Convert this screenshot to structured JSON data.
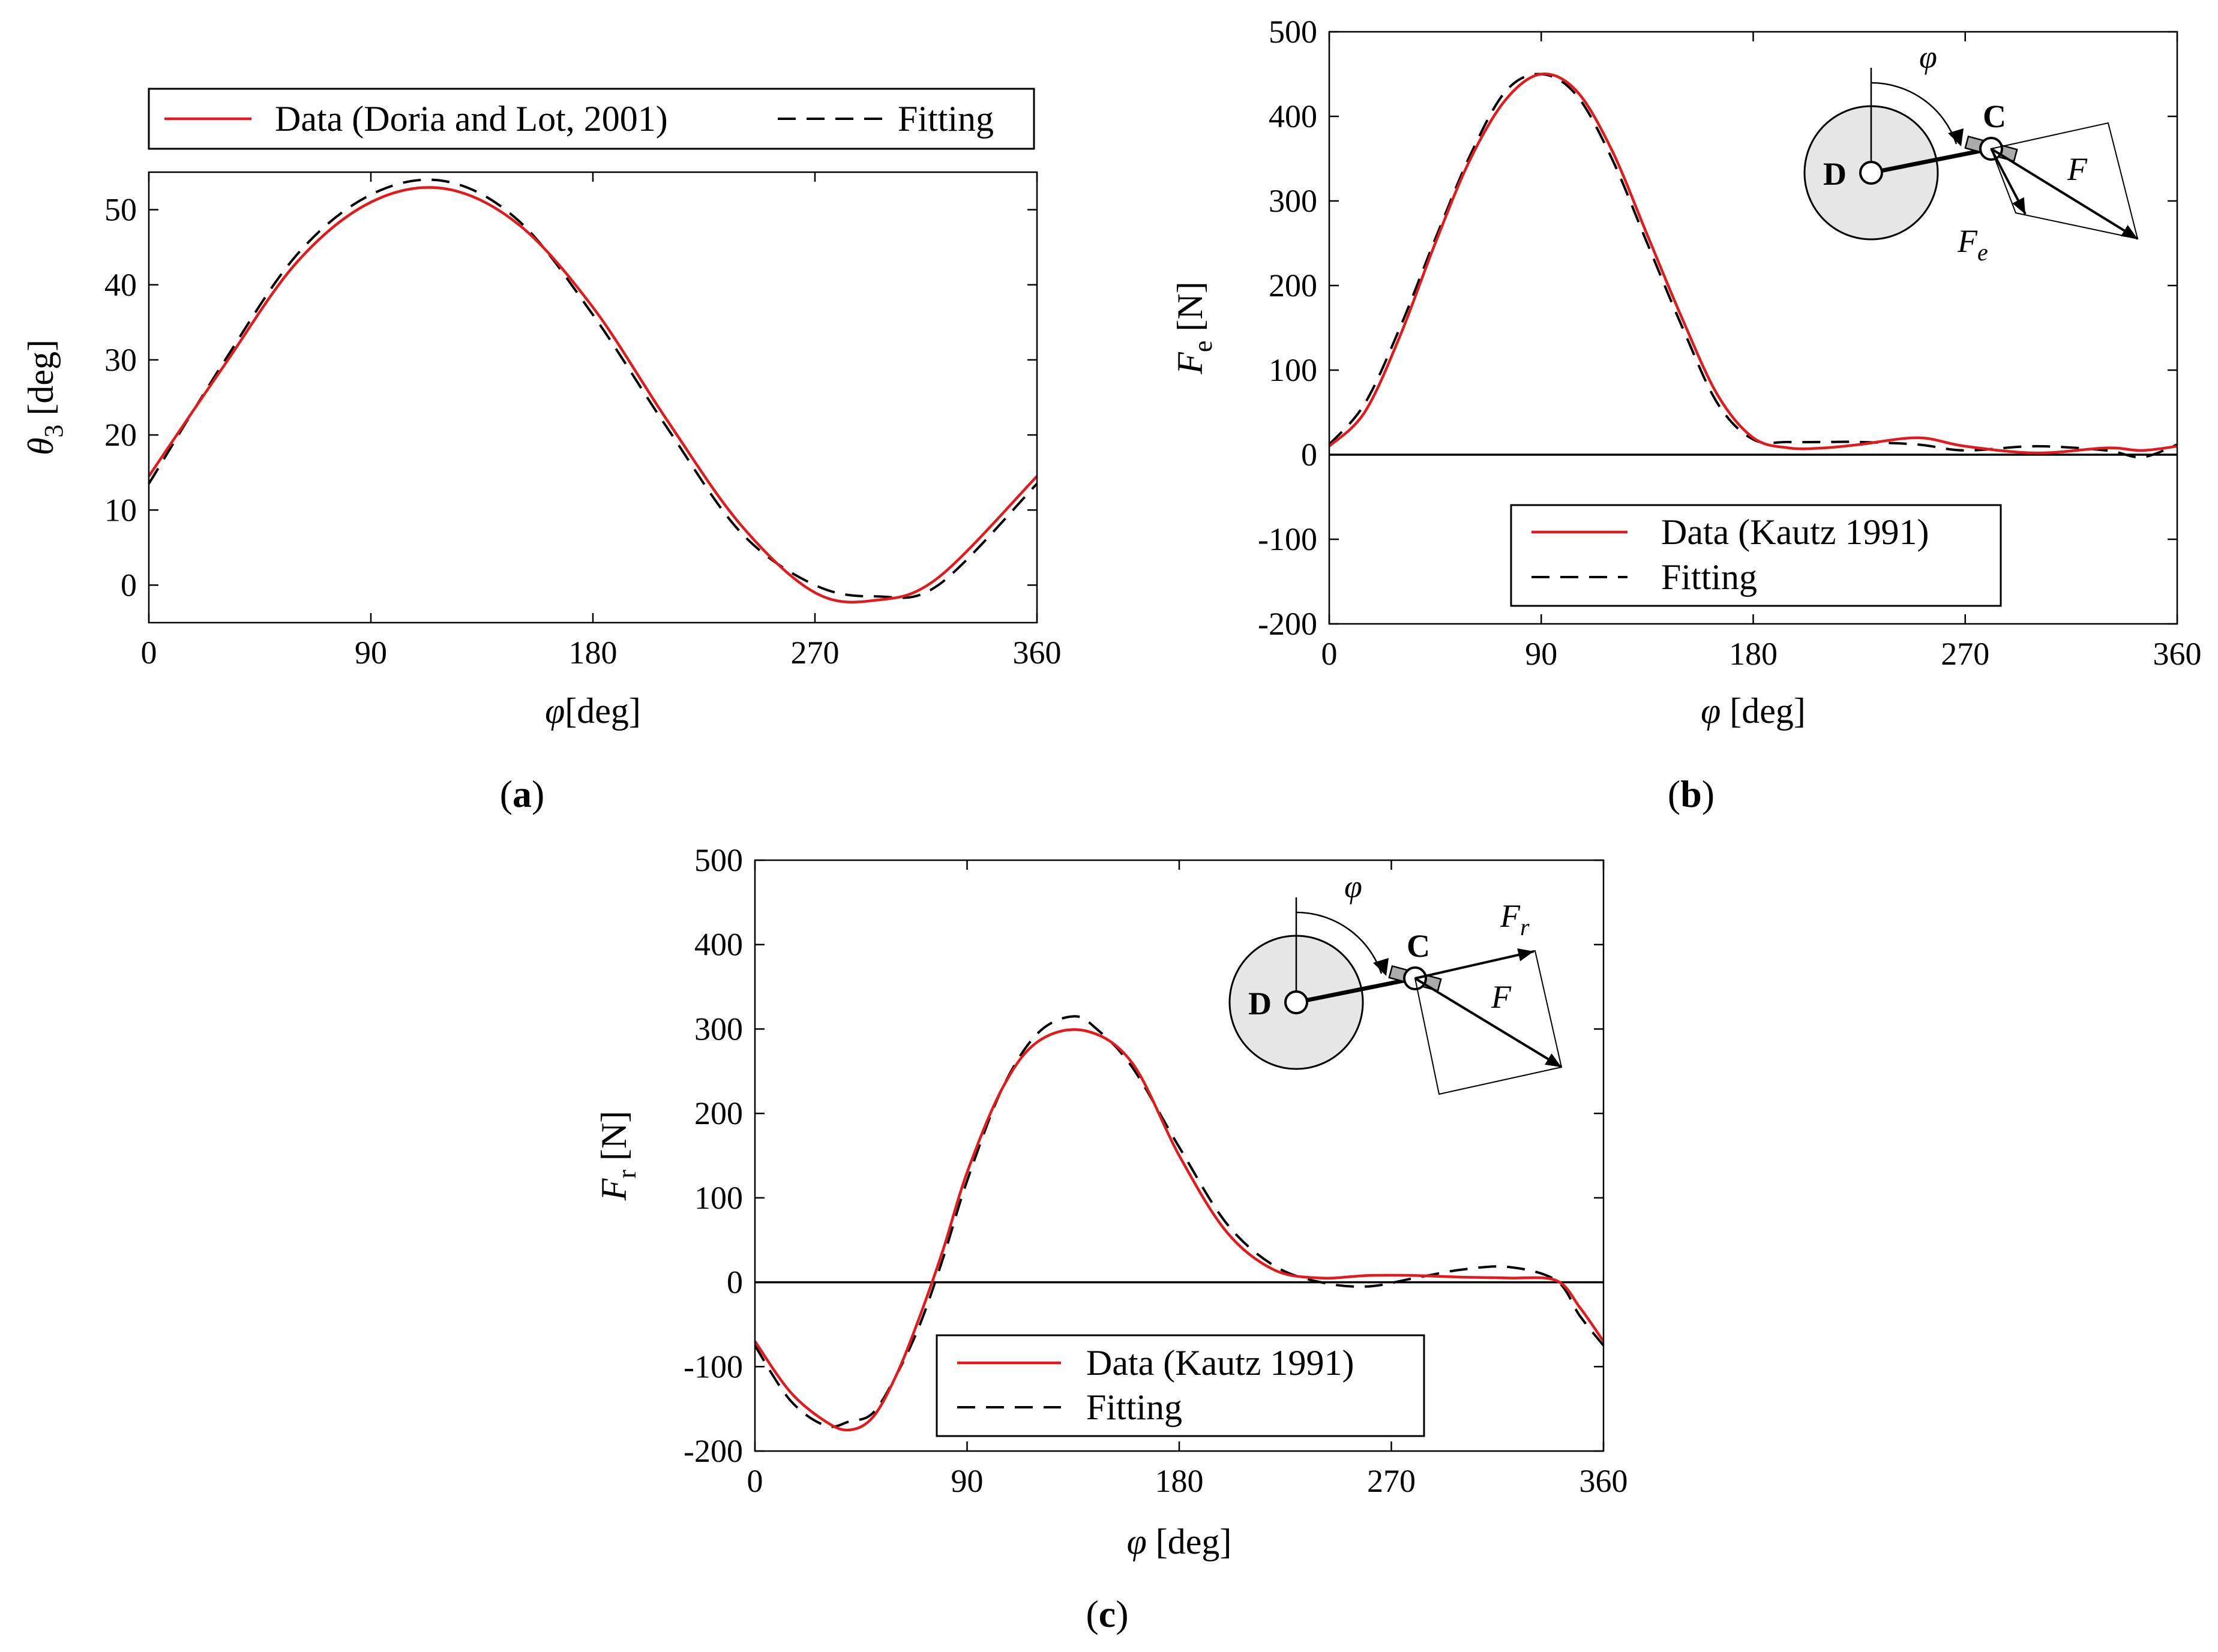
{
  "colors": {
    "data": "#e31a1c",
    "fit": "#000000",
    "disk": "#e6e6e6"
  },
  "chart_data": [
    {
      "id": "a",
      "type": "line",
      "caption_letter": "a",
      "xlabel_symbol": "φ",
      "xlabel_unit": "[deg]",
      "ylabel_symbol": "θ",
      "ylabel_sub": "3",
      "ylabel_unit": " [deg]",
      "xlim": [
        0,
        360
      ],
      "ylim": [
        -5,
        55
      ],
      "xticks": [
        "0",
        "90",
        "180",
        "270",
        "360"
      ],
      "yticks": [
        "0",
        "10",
        "20",
        "30",
        "40",
        "50"
      ],
      "ytick_values": [
        0,
        10,
        20,
        30,
        40,
        50
      ],
      "zero_line": false,
      "legend": {
        "placement": "top-outside",
        "labels": [
          "Data (Doria and Lot, 2001)",
          "Fitting"
        ]
      },
      "series": [
        {
          "name": "Data (Doria and Lot, 2001)",
          "x": [
            0,
            30,
            60,
            90,
            120,
            150,
            180,
            210,
            240,
            270,
            295,
            320,
            360
          ],
          "values": [
            14.5,
            29,
            43,
            51,
            52.8,
            48,
            37,
            22,
            8,
            -1,
            -2,
            1,
            14.5
          ]
        },
        {
          "name": "Fitting",
          "x": [
            0,
            30,
            60,
            90,
            120,
            150,
            180,
            210,
            240,
            270,
            295,
            320,
            360
          ],
          "values": [
            13.5,
            29.5,
            44,
            52,
            53.8,
            48.5,
            36,
            21,
            7,
            0,
            -1.5,
            0,
            13.5
          ]
        }
      ]
    },
    {
      "id": "b",
      "type": "line",
      "caption_letter": "b",
      "xlabel_symbol": "φ",
      "xlabel_unit": " [deg]",
      "ylabel_symbol": "F",
      "ylabel_sub": "e",
      "ylabel_unit": " [N]",
      "xlim": [
        0,
        360
      ],
      "ylim": [
        -200,
        500
      ],
      "xticks": [
        "0",
        "90",
        "180",
        "270",
        "360"
      ],
      "yticks": [
        "-200",
        "-100",
        "0",
        "100",
        "200",
        "300",
        "400",
        "500"
      ],
      "ytick_values": [
        -200,
        -100,
        0,
        100,
        200,
        300,
        400,
        500
      ],
      "zero_line": true,
      "legend": {
        "placement": "lower-center",
        "labels": [
          "Data (Kautz 1991)",
          "Fitting"
        ]
      },
      "diagram": {
        "angle_symbol": "φ",
        "point_d": "D",
        "point_c": "C",
        "force": "F",
        "component": "F",
        "component_sub": "e"
      },
      "series": [
        {
          "name": "Data (Kautz 1991)",
          "x": [
            0,
            15,
            30,
            45,
            60,
            75,
            90,
            105,
            120,
            135,
            150,
            165,
            180,
            195,
            210,
            225,
            250,
            270,
            300,
            330,
            345,
            360
          ],
          "values": [
            10,
            50,
            140,
            250,
            350,
            420,
            450,
            430,
            360,
            260,
            160,
            70,
            20,
            8,
            8,
            12,
            20,
            10,
            2,
            8,
            5,
            10
          ]
        },
        {
          "name": "Fitting",
          "x": [
            0,
            15,
            30,
            45,
            60,
            75,
            90,
            105,
            120,
            135,
            150,
            165,
            180,
            195,
            210,
            225,
            250,
            270,
            300,
            330,
            345,
            360
          ],
          "values": [
            12,
            60,
            150,
            255,
            355,
            430,
            450,
            425,
            350,
            250,
            150,
            60,
            18,
            15,
            15,
            15,
            12,
            5,
            10,
            5,
            -3,
            12
          ]
        }
      ]
    },
    {
      "id": "c",
      "type": "line",
      "caption_letter": "c",
      "xlabel_symbol": "φ",
      "xlabel_unit": " [deg]",
      "ylabel_symbol": "F",
      "ylabel_sub": "r",
      "ylabel_unit": " [N]",
      "xlim": [
        0,
        360
      ],
      "ylim": [
        -200,
        500
      ],
      "xticks": [
        "0",
        "90",
        "180",
        "270",
        "360"
      ],
      "yticks": [
        "-200",
        "-100",
        "0",
        "100",
        "200",
        "300",
        "400",
        "500"
      ],
      "ytick_values": [
        -200,
        -100,
        0,
        100,
        200,
        300,
        400,
        500
      ],
      "zero_line": true,
      "legend": {
        "placement": "lower-center",
        "labels": [
          "Data (Kautz 1991)",
          "Fitting"
        ]
      },
      "diagram": {
        "angle_symbol": "φ",
        "point_d": "D",
        "point_c": "C",
        "force": "F",
        "component": "F",
        "component_sub": "r"
      },
      "series": [
        {
          "name": "Data (Kautz 1991)",
          "x": [
            0,
            15,
            30,
            40,
            50,
            60,
            70,
            80,
            90,
            105,
            120,
            140,
            160,
            180,
            200,
            220,
            240,
            260,
            280,
            300,
            320,
            340,
            350,
            360
          ],
          "values": [
            -70,
            -130,
            -165,
            -175,
            -160,
            -110,
            -40,
            40,
            130,
            230,
            285,
            298,
            260,
            150,
            60,
            15,
            5,
            8,
            8,
            6,
            5,
            2,
            -30,
            -70
          ]
        },
        {
          "name": "Fitting",
          "x": [
            0,
            15,
            30,
            40,
            50,
            60,
            70,
            80,
            90,
            105,
            120,
            135,
            145,
            160,
            180,
            200,
            220,
            240,
            260,
            280,
            300,
            320,
            340,
            350,
            360
          ],
          "values": [
            -75,
            -140,
            -170,
            -165,
            -155,
            -110,
            -50,
            30,
            120,
            230,
            295,
            315,
            300,
            255,
            160,
            70,
            20,
            0,
            -5,
            5,
            15,
            18,
            2,
            -40,
            -75
          ]
        }
      ]
    }
  ]
}
